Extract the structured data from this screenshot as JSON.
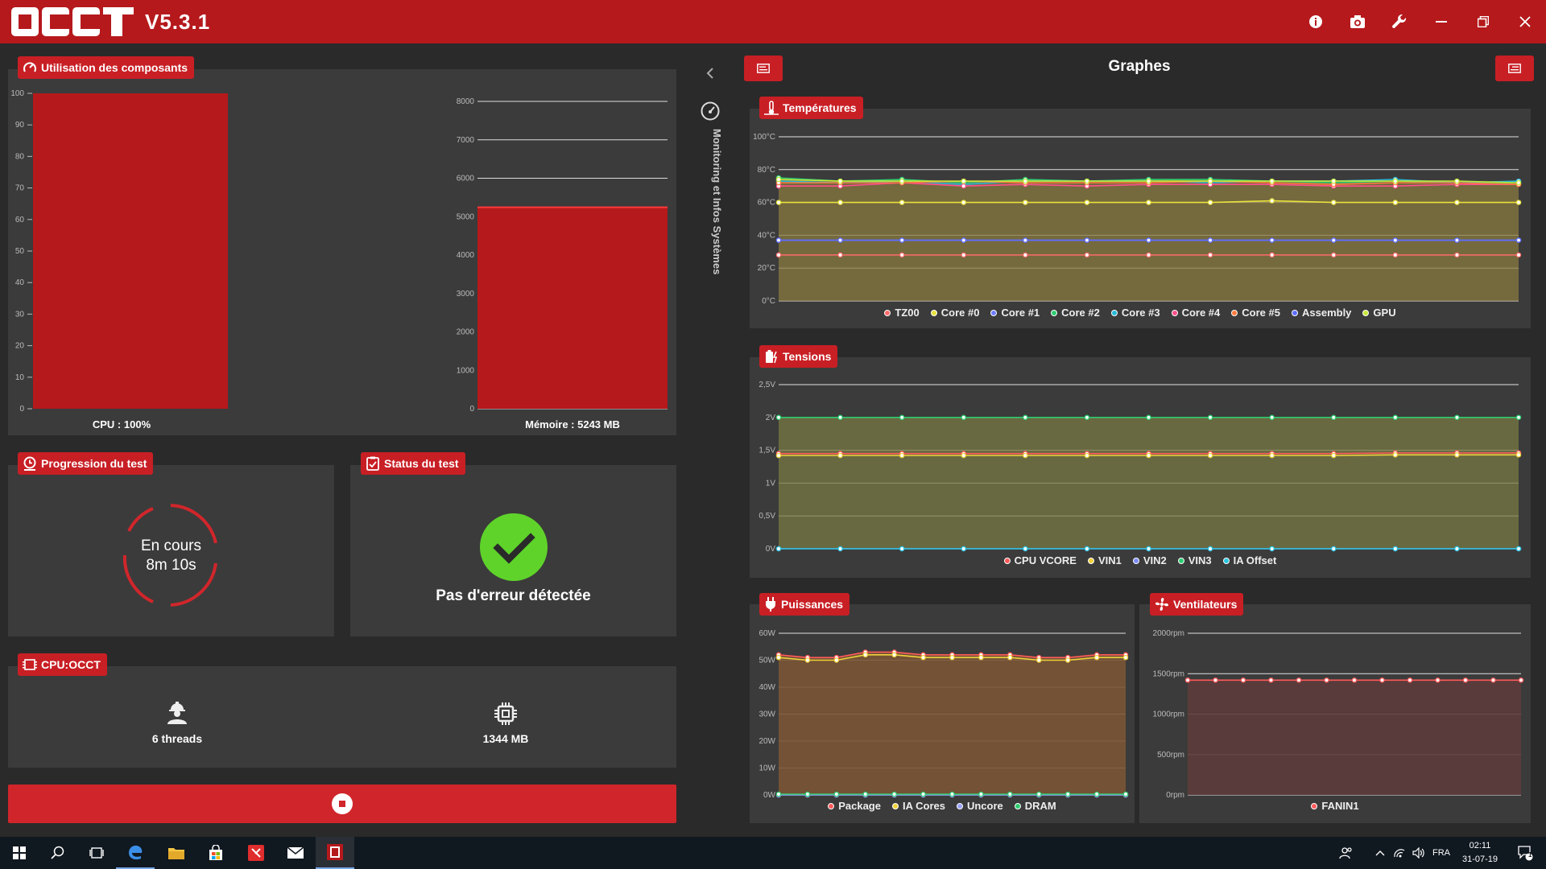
{
  "app": {
    "version": "V5.3.1"
  },
  "usage": {
    "title": "Utilisation des composants",
    "cpu_caption": "CPU : 100%",
    "cpu_value": 100,
    "cpu_axis": [
      "0",
      "10",
      "20",
      "30",
      "40",
      "50",
      "60",
      "70",
      "80",
      "90",
      "100"
    ],
    "mem_caption": "Mémoire : 5243 MB",
    "mem_value": 5243,
    "mem_axis": [
      "0",
      "1000",
      "2000",
      "3000",
      "4000",
      "5000",
      "6000",
      "7000",
      "8000"
    ],
    "bar_color": "#b5191c"
  },
  "progress": {
    "title": "Progression du test",
    "status": "En cours",
    "elapsed": "8m 10s"
  },
  "status": {
    "title": "Status du test",
    "message": "Pas d'erreur détectée",
    "ok_color": "#5fd32a"
  },
  "cpu_test": {
    "title": "CPU:OCCT",
    "threads": "6 threads",
    "memory": "1344 MB"
  },
  "rail": {
    "label": "Monitoring et Infos Systèmes"
  },
  "graphs": {
    "title": "Graphes"
  },
  "chart_data": [
    {
      "id": "temp",
      "type": "line",
      "title": "Températures",
      "yticks": [
        "100°C",
        "80°C",
        "60°C",
        "40°C",
        "20°C",
        "0°C"
      ],
      "ylim": [
        0,
        100
      ],
      "series": [
        {
          "name": "TZ00",
          "color": "#ff6b6b",
          "values": [
            28,
            28,
            28,
            28,
            28,
            28,
            28,
            28,
            28,
            28,
            28,
            28,
            28
          ]
        },
        {
          "name": "Core #0",
          "color": "#e8e23a",
          "values": [
            60,
            60,
            60,
            60,
            60,
            60,
            60,
            60,
            61,
            60,
            60,
            60,
            60
          ]
        },
        {
          "name": "Core #1",
          "color": "#6d7cff",
          "values": [
            37,
            37,
            37,
            37,
            37,
            37,
            37,
            37,
            37,
            37,
            37,
            37,
            37
          ]
        },
        {
          "name": "Core #2",
          "color": "#2ecc71",
          "values": [
            75,
            73,
            74,
            72,
            74,
            73,
            74,
            74,
            73,
            72,
            73,
            72,
            72
          ]
        },
        {
          "name": "Core #3",
          "color": "#27b8d6",
          "values": [
            73,
            72,
            73,
            71,
            73,
            73,
            73,
            72,
            73,
            73,
            74,
            72,
            73
          ]
        },
        {
          "name": "Core #4",
          "color": "#ff4f8b",
          "values": [
            70,
            70,
            72,
            70,
            71,
            70,
            71,
            71,
            71,
            70,
            70,
            71,
            71
          ]
        },
        {
          "name": "Core #5",
          "color": "#ff7a3d",
          "values": [
            72,
            72,
            72,
            73,
            72,
            72,
            72,
            73,
            72,
            71,
            72,
            72,
            71
          ]
        },
        {
          "name": "Assembly",
          "color": "#5b6cff",
          "values": [
            37,
            37,
            37,
            37,
            37,
            37,
            37,
            37,
            37,
            37,
            37,
            37,
            37
          ]
        },
        {
          "name": "GPU",
          "color": "#c6e83a",
          "values": [
            74,
            73,
            73,
            73,
            73,
            73,
            73,
            73,
            73,
            73,
            73,
            73,
            72
          ]
        }
      ]
    },
    {
      "id": "volt",
      "type": "line",
      "title": "Tensions",
      "yticks": [
        "2,5V",
        "2V",
        "1,5V",
        "1V",
        "0,5V",
        "0V"
      ],
      "ylim": [
        0,
        2.5
      ],
      "series": [
        {
          "name": "CPU VCORE",
          "color": "#ff5a5a",
          "values": [
            1.45,
            1.45,
            1.45,
            1.45,
            1.45,
            1.45,
            1.45,
            1.45,
            1.45,
            1.45,
            1.46,
            1.46,
            1.46
          ]
        },
        {
          "name": "VIN1",
          "color": "#f0d23a",
          "values": [
            1.42,
            1.42,
            1.42,
            1.42,
            1.42,
            1.42,
            1.42,
            1.42,
            1.42,
            1.42,
            1.43,
            1.43,
            1.43
          ]
        },
        {
          "name": "VIN2",
          "color": "#7c8cff",
          "values": [
            0,
            0,
            0,
            0,
            0,
            0,
            0,
            0,
            0,
            0,
            0,
            0,
            0
          ]
        },
        {
          "name": "VIN3",
          "color": "#2ecc71",
          "values": [
            2,
            2,
            2,
            2,
            2,
            2,
            2,
            2,
            2,
            2,
            2,
            2,
            2
          ]
        },
        {
          "name": "IA Offset",
          "color": "#27c6e0",
          "values": [
            0,
            0,
            0,
            0,
            0,
            0,
            0,
            0,
            0,
            0,
            0,
            0,
            0
          ]
        }
      ]
    },
    {
      "id": "power",
      "type": "line",
      "title": "Puissances",
      "yticks": [
        "60W",
        "50W",
        "40W",
        "30W",
        "20W",
        "10W",
        "0W"
      ],
      "ylim": [
        0,
        60
      ],
      "series": [
        {
          "name": "Package",
          "color": "#ff5a5a",
          "values": [
            52,
            51,
            51,
            53,
            53,
            52,
            52,
            52,
            52,
            51,
            51,
            52,
            52
          ]
        },
        {
          "name": "IA Cores",
          "color": "#f0d23a",
          "values": [
            51,
            50,
            50,
            52,
            52,
            51,
            51,
            51,
            51,
            50,
            50,
            51,
            51
          ]
        },
        {
          "name": "Uncore",
          "color": "#9aa4ff",
          "values": [
            0,
            0,
            0,
            0,
            0,
            0,
            0,
            0,
            0,
            0,
            0,
            0,
            0
          ]
        },
        {
          "name": "DRAM",
          "color": "#2ecc71",
          "values": [
            0.3,
            0.3,
            0.3,
            0.3,
            0.3,
            0.3,
            0.3,
            0.3,
            0.3,
            0.3,
            0.3,
            0.3,
            0.3
          ]
        }
      ]
    },
    {
      "id": "fan",
      "type": "line",
      "title": "Ventilateurs",
      "yticks": [
        "2000rpm",
        "1500rpm",
        "1000rpm",
        "500rpm",
        "0rpm"
      ],
      "ylim": [
        0,
        2000
      ],
      "series": [
        {
          "name": "FANIN1",
          "color": "#ff5a5a",
          "values": [
            1420,
            1420,
            1420,
            1420,
            1420,
            1420,
            1420,
            1420,
            1420,
            1420,
            1420,
            1420,
            1420
          ]
        }
      ]
    }
  ],
  "taskbar": {
    "lang": "FRA",
    "time": "02:11",
    "date": "31-07-19",
    "notif": "1"
  }
}
